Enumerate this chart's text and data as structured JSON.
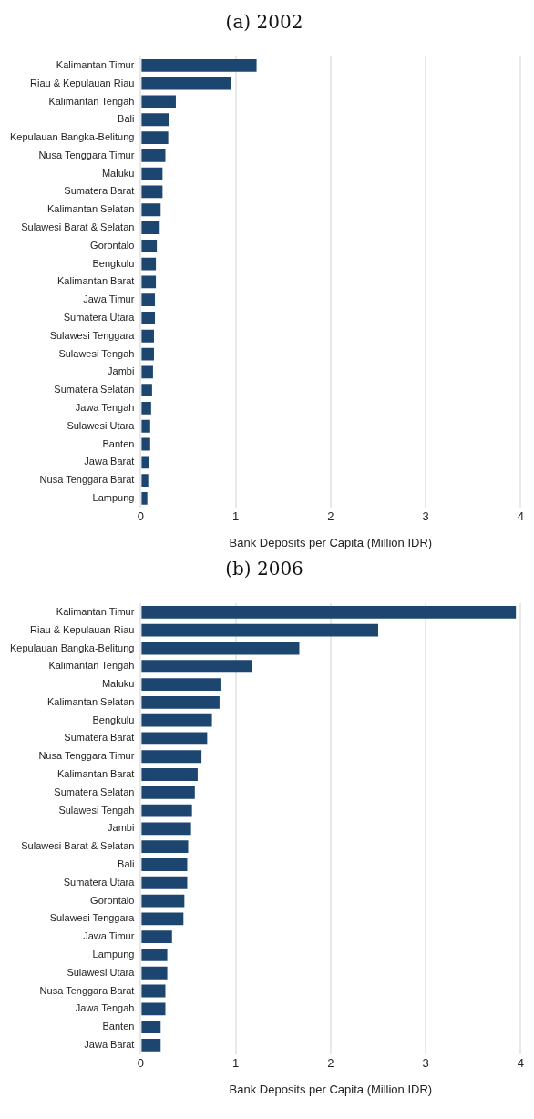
{
  "chart_data": [
    {
      "type": "bar",
      "title": "(a) 2002",
      "orientation": "horizontal",
      "xlabel": "Bank Deposits per Capita (Million IDR)",
      "categories": [
        "Kalimantan Timur",
        "Riau & Kepulauan Riau",
        "Kalimantan Tengah",
        "Bali",
        "Kepulauan Bangka-Belitung",
        "Nusa Tenggara Timur",
        "Maluku",
        "Sumatera Barat",
        "Kalimantan Selatan",
        "Sulawesi Barat & Selatan",
        "Gorontalo",
        "Bengkulu",
        "Kalimantan Barat",
        "Jawa Timur",
        "Sumatera Utara",
        "Sulawesi Tenggara",
        "Sulawesi Tengah",
        "Jambi",
        "Sumatera Selatan",
        "Jawa Tengah",
        "Sulawesi Utara",
        "Banten",
        "Jawa Barat",
        "Nusa Tenggara Barat",
        "Lampung"
      ],
      "values": [
        1.22,
        0.95,
        0.37,
        0.3,
        0.29,
        0.26,
        0.23,
        0.23,
        0.21,
        0.2,
        0.17,
        0.16,
        0.16,
        0.15,
        0.15,
        0.14,
        0.14,
        0.13,
        0.12,
        0.11,
        0.1,
        0.1,
        0.09,
        0.08,
        0.07
      ],
      "color": "#1c4670",
      "xlim": [
        0,
        4
      ],
      "xticks": [
        0,
        1,
        2,
        3,
        4
      ],
      "grid": "x",
      "legend": false
    },
    {
      "type": "bar",
      "title": "(b) 2006",
      "orientation": "horizontal",
      "xlabel": "Bank Deposits per Capita (Million IDR)",
      "categories": [
        "Kalimantan Timur",
        "Riau & Kepulauan Riau",
        "Kepulauan Bangka-Belitung",
        "Kalimantan Tengah",
        "Maluku",
        "Kalimantan Selatan",
        "Bengkulu",
        "Sumatera Barat",
        "Nusa Tenggara Timur",
        "Kalimantan Barat",
        "Sumatera Selatan",
        "Sulawesi Tengah",
        "Jambi",
        "Sulawesi Barat & Selatan",
        "Bali",
        "Sumatera Utara",
        "Gorontalo",
        "Sulawesi Tenggara",
        "Jawa Timur",
        "Lampung",
        "Sulawesi Utara",
        "Nusa Tenggara Barat",
        "Jawa Tengah",
        "Banten",
        "Jawa Barat"
      ],
      "values": [
        3.95,
        2.5,
        1.67,
        1.17,
        0.84,
        0.83,
        0.75,
        0.7,
        0.64,
        0.6,
        0.57,
        0.54,
        0.53,
        0.5,
        0.49,
        0.49,
        0.46,
        0.45,
        0.33,
        0.28,
        0.28,
        0.26,
        0.26,
        0.21,
        0.21
      ],
      "color": "#1c4670",
      "xlim": [
        0,
        4
      ],
      "xticks": [
        0,
        1,
        2,
        3,
        4
      ],
      "grid": "x",
      "legend": false
    }
  ]
}
